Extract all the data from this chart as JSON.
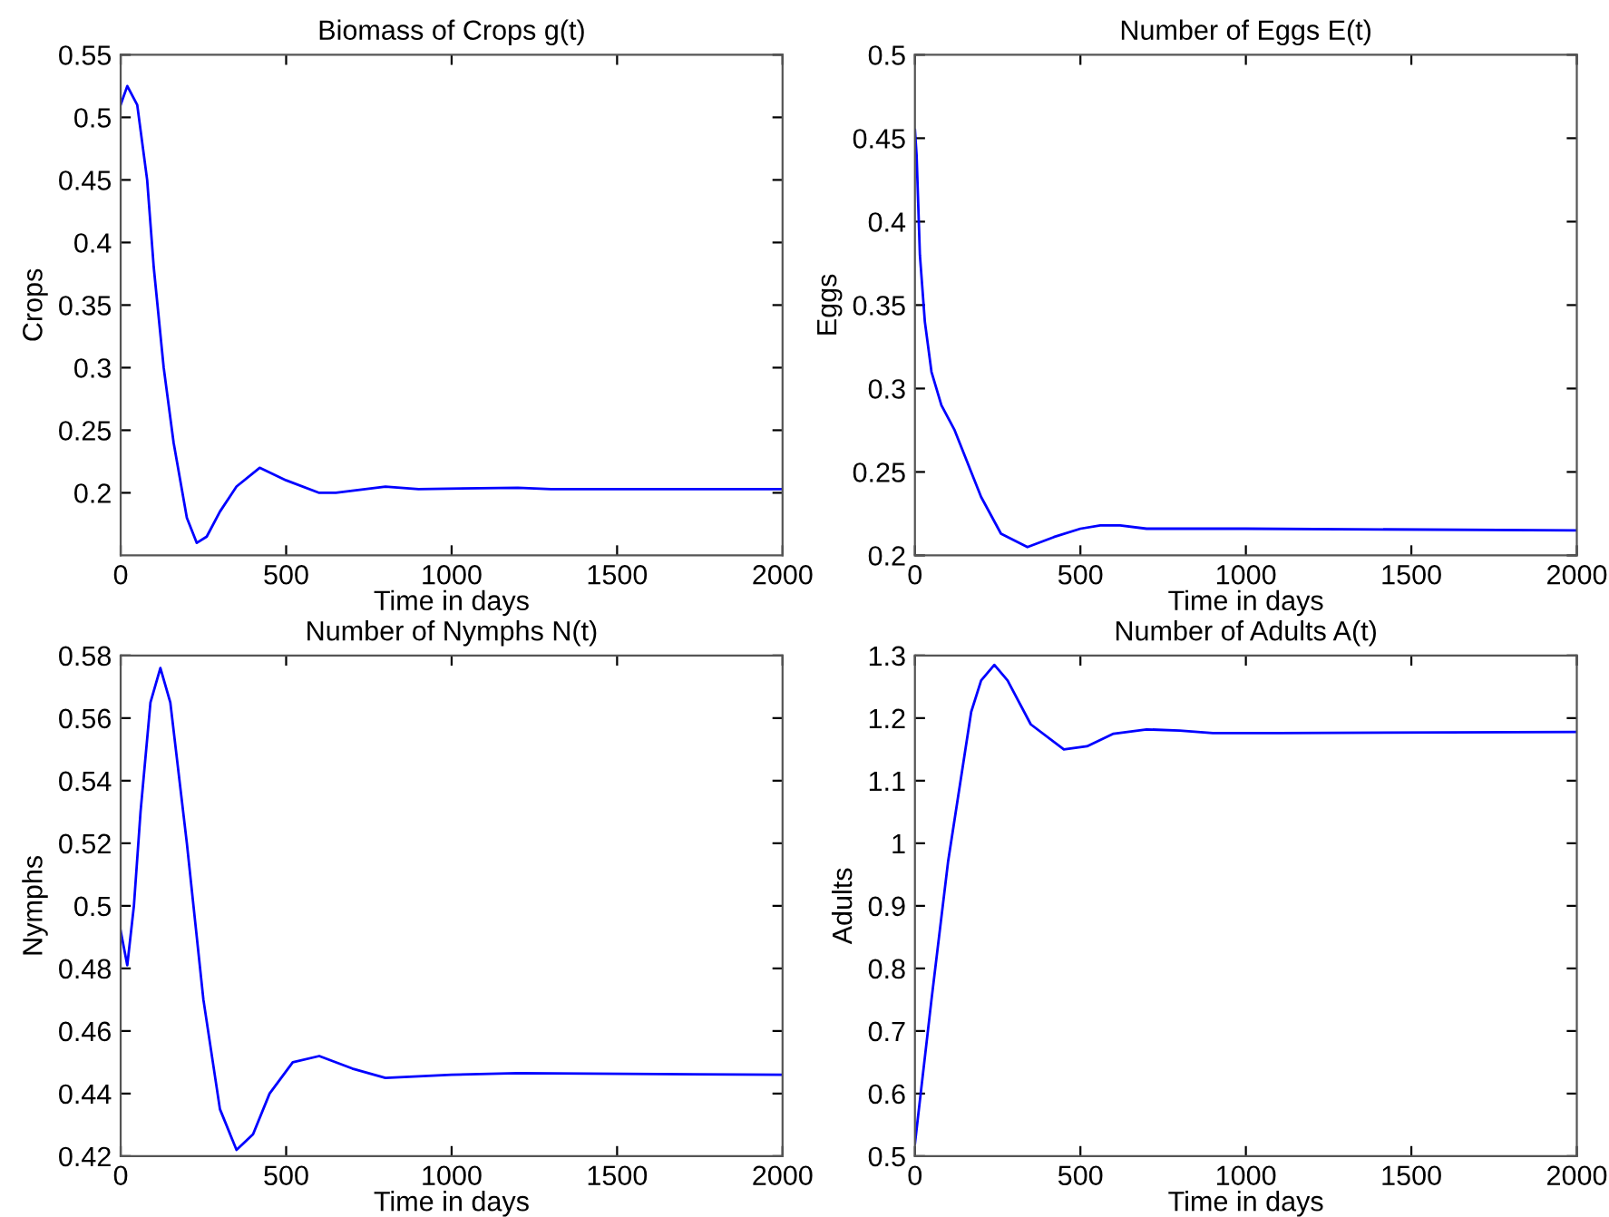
{
  "chart_data": [
    {
      "type": "line",
      "title": "Biomass of Crops g(t)",
      "xlabel": "Time in days",
      "ylabel": "Crops",
      "xlim": [
        0,
        2000
      ],
      "xticks": [
        0,
        500,
        1000,
        1500,
        2000
      ],
      "ylim": [
        0.15,
        0.55
      ],
      "yticks": [
        0.2,
        0.25,
        0.3,
        0.35,
        0.4,
        0.45,
        0.5,
        0.55
      ],
      "grid": false,
      "series": [
        {
          "color": "#0000ff",
          "x": [
            0,
            20,
            50,
            80,
            100,
            130,
            160,
            200,
            230,
            260,
            300,
            350,
            420,
            500,
            600,
            650,
            800,
            900,
            1200,
            1300,
            2000
          ],
          "values": [
            0.51,
            0.525,
            0.51,
            0.45,
            0.38,
            0.3,
            0.24,
            0.18,
            0.16,
            0.165,
            0.185,
            0.205,
            0.22,
            0.21,
            0.2,
            0.2,
            0.205,
            0.203,
            0.204,
            0.203,
            0.203
          ]
        }
      ]
    },
    {
      "type": "line",
      "title": "Number of Eggs E(t)",
      "xlabel": "Time in days",
      "ylabel": "Eggs",
      "xlim": [
        0,
        2000
      ],
      "xticks": [
        0,
        500,
        1000,
        1500,
        2000
      ],
      "ylim": [
        0.2,
        0.5
      ],
      "yticks": [
        0.2,
        0.25,
        0.3,
        0.35,
        0.4,
        0.45,
        0.5
      ],
      "grid": false,
      "series": [
        {
          "color": "#0000ff",
          "x": [
            0,
            5,
            15,
            30,
            50,
            80,
            120,
            170,
            200,
            260,
            340,
            420,
            500,
            560,
            620,
            700,
            1000,
            2000
          ],
          "values": [
            0.455,
            0.44,
            0.38,
            0.34,
            0.31,
            0.29,
            0.275,
            0.25,
            0.235,
            0.213,
            0.205,
            0.211,
            0.216,
            0.218,
            0.218,
            0.216,
            0.216,
            0.215
          ]
        }
      ]
    },
    {
      "type": "line",
      "title": "Number of Nymphs N(t)",
      "xlabel": "Time in days",
      "ylabel": "Nymphs",
      "xlim": [
        0,
        2000
      ],
      "xticks": [
        0,
        500,
        1000,
        1500,
        2000
      ],
      "ylim": [
        0.42,
        0.58
      ],
      "yticks": [
        0.42,
        0.44,
        0.46,
        0.48,
        0.5,
        0.52,
        0.54,
        0.56,
        0.58
      ],
      "grid": false,
      "series": [
        {
          "color": "#0000ff",
          "x": [
            0,
            20,
            40,
            60,
            90,
            120,
            150,
            200,
            250,
            300,
            350,
            400,
            450,
            520,
            600,
            700,
            800,
            1000,
            1200,
            2000
          ],
          "values": [
            0.492,
            0.481,
            0.5,
            0.53,
            0.565,
            0.576,
            0.565,
            0.52,
            0.47,
            0.435,
            0.422,
            0.427,
            0.44,
            0.45,
            0.452,
            0.448,
            0.445,
            0.446,
            0.4465,
            0.446
          ]
        }
      ]
    },
    {
      "type": "line",
      "title": "Number of Adults A(t)",
      "xlabel": "Time in days",
      "ylabel": "Adults",
      "xlim": [
        0,
        2000
      ],
      "xticks": [
        0,
        500,
        1000,
        1500,
        2000
      ],
      "ylim": [
        0.5,
        1.3
      ],
      "yticks": [
        0.5,
        0.6,
        0.7,
        0.8,
        0.9,
        1,
        1.1,
        1.2,
        1.3
      ],
      "grid": false,
      "series": [
        {
          "color": "#0000ff",
          "x": [
            0,
            50,
            100,
            170,
            200,
            240,
            280,
            350,
            450,
            520,
            600,
            700,
            800,
            900,
            1100,
            2000
          ],
          "values": [
            0.52,
            0.75,
            0.97,
            1.21,
            1.26,
            1.285,
            1.26,
            1.19,
            1.15,
            1.155,
            1.175,
            1.182,
            1.18,
            1.176,
            1.176,
            1.178
          ]
        }
      ]
    }
  ]
}
